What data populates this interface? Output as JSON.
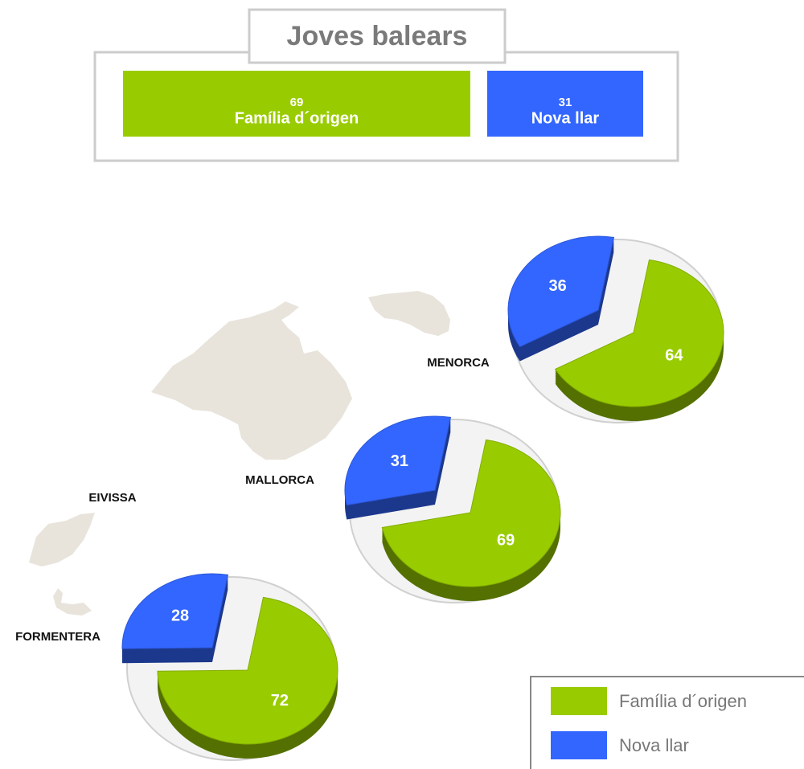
{
  "chart_data": [
    {
      "type": "stacked-bar",
      "title": "Joves balears",
      "series": [
        {
          "name": "Família d´origen",
          "color": "#99cc00",
          "values": [
            69
          ]
        },
        {
          "name": "Nova llar",
          "color": "#3366ff",
          "values": [
            31
          ]
        }
      ]
    },
    {
      "type": "pie",
      "values": [
        64,
        36
      ],
      "colors": [
        "#99cc00",
        "#3366ff"
      ]
    },
    {
      "type": "pie",
      "values": [
        69,
        31
      ],
      "colors": [
        "#99cc00",
        "#3366ff"
      ]
    },
    {
      "type": "pie",
      "values": [
        72,
        28
      ],
      "colors": [
        "#99cc00",
        "#3366ff"
      ]
    }
  ],
  "map": {
    "labels": [
      "MENORCA",
      "MALLORCA",
      "EIVISSA",
      "FORMENTERA"
    ]
  }
}
